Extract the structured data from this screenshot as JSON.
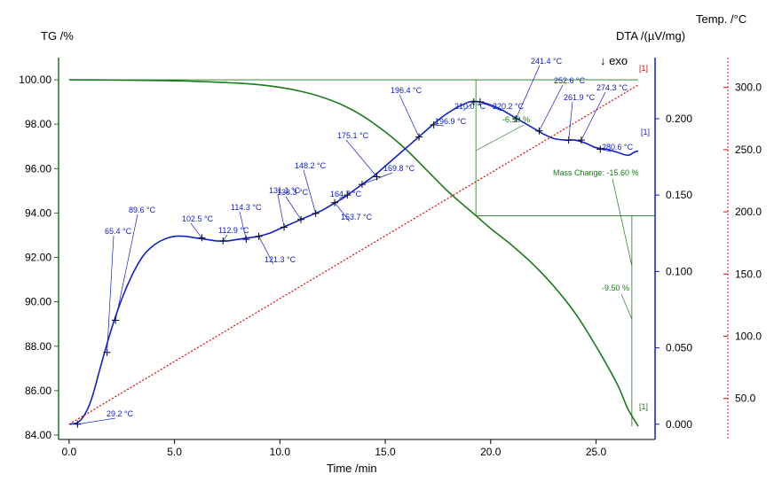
{
  "chart_data": {
    "type": "line",
    "x_label": "Time /min",
    "tg_label": "TG /%",
    "dta_label": "DTA /(µV/mg)",
    "temp_label": "Temp. /°C",
    "exo_label": "↓ exo",
    "xlim": [
      -0.5,
      27.8
    ],
    "tg_lim": [
      83.8,
      101
    ],
    "dta_lim": [
      -0.01,
      0.24
    ],
    "temp_lim": [
      17,
      324
    ],
    "x_ticks": [
      "0.0",
      "5.0",
      "10.0",
      "15.0",
      "20.0",
      "25.0"
    ],
    "tg_ticks": [
      "84.00",
      "86.00",
      "88.00",
      "90.00",
      "92.00",
      "94.00",
      "96.00",
      "98.00",
      "100.00"
    ],
    "dta_ticks": [
      "0.000",
      "0.050",
      "0.100",
      "0.150",
      "0.200"
    ],
    "temp_ticks": [
      "50.0",
      "100.0",
      "150.0",
      "200.0",
      "250.0",
      "300.0"
    ],
    "colors": {
      "tg": "#1a7a1a",
      "dta": "#1020c8",
      "temp": "#e00000",
      "grid": "#000000"
    },
    "series": [
      {
        "name": "TG",
        "axis": "tg",
        "x": [
          0,
          2,
          4,
          6,
          8,
          9,
          10,
          11,
          12,
          13,
          14,
          15,
          16,
          17,
          18,
          19.3,
          20,
          21,
          22,
          23,
          24,
          25,
          26,
          26.5,
          27
        ],
        "y": [
          100,
          99.99,
          99.97,
          99.93,
          99.85,
          99.78,
          99.66,
          99.48,
          99.22,
          98.85,
          98.33,
          97.65,
          96.85,
          95.9,
          94.95,
          93.88,
          93.3,
          92.55,
          91.7,
          90.7,
          89.5,
          88.0,
          86.3,
          85.2,
          84.4
        ]
      },
      {
        "name": "DTA",
        "axis": "dta",
        "x": [
          0,
          0.5,
          1.0,
          1.5,
          2.0,
          2.5,
          3.0,
          3.5,
          4.0,
          4.5,
          5.0,
          5.5,
          6.0,
          6.5,
          7.0,
          7.5,
          8.0,
          8.5,
          9.0,
          9.5,
          10.0,
          10.5,
          11.0,
          11.5,
          12.0,
          12.5,
          13.0,
          13.5,
          14.0,
          14.5,
          15.0,
          15.5,
          16.0,
          16.5,
          17.0,
          17.5,
          18.0,
          18.5,
          19.0,
          19.5,
          20.0,
          20.5,
          21.0,
          21.5,
          22.0,
          22.5,
          23.0,
          23.5,
          24.0,
          24.5,
          25.0,
          25.5,
          26.0,
          26.5,
          26.8,
          27.0
        ],
        "y": [
          0.0,
          0.002,
          0.014,
          0.038,
          0.062,
          0.082,
          0.098,
          0.11,
          0.117,
          0.121,
          0.123,
          0.123,
          0.122,
          0.121,
          0.12,
          0.12,
          0.121,
          0.122,
          0.123,
          0.125,
          0.128,
          0.131,
          0.134,
          0.137,
          0.14,
          0.144,
          0.148,
          0.153,
          0.158,
          0.163,
          0.169,
          0.175,
          0.181,
          0.187,
          0.193,
          0.199,
          0.204,
          0.208,
          0.211,
          0.211,
          0.209,
          0.206,
          0.202,
          0.198,
          0.194,
          0.19,
          0.187,
          0.186,
          0.186,
          0.184,
          0.181,
          0.18,
          0.178,
          0.176,
          0.178,
          0.179
        ]
      },
      {
        "name": "Temp",
        "axis": "temp",
        "x": [
          0,
          27
        ],
        "y": [
          29.2,
          302
        ]
      }
    ],
    "dta_peaks": [
      {
        "label": "29.2 °C",
        "x": 0.4,
        "y": 0.0
      },
      {
        "label": "65.4 °C",
        "x": 1.8,
        "y": 0.047
      },
      {
        "label": "89.6 °C",
        "x": 2.2,
        "y": 0.068
      },
      {
        "label": "102.5 °C",
        "x": 6.3,
        "y": 0.122
      },
      {
        "label": "112.9 °C",
        "x": 7.3,
        "y": 0.12
      },
      {
        "label": "114.3 °C",
        "x": 8.4,
        "y": 0.121
      },
      {
        "label": "121.3 °C",
        "x": 9.0,
        "y": 0.123
      },
      {
        "label": "131.1 °C",
        "x": 10.2,
        "y": 0.129
      },
      {
        "label": "138.3 °C",
        "x": 11.0,
        "y": 0.134
      },
      {
        "label": "148.2 °C",
        "x": 11.7,
        "y": 0.138
      },
      {
        "label": "153.7 °C",
        "x": 12.6,
        "y": 0.145
      },
      {
        "label": "164.7 °C",
        "x": 13.2,
        "y": 0.15
      },
      {
        "label": "169.8 °C",
        "x": 13.9,
        "y": 0.157
      },
      {
        "label": "175.1 °C",
        "x": 14.6,
        "y": 0.162
      },
      {
        "label": "196.4 °C",
        "x": 16.6,
        "y": 0.188
      },
      {
        "label": "196.9 °C",
        "x": 17.3,
        "y": 0.196
      },
      {
        "label": "210.0 °C",
        "x": 19.2,
        "y": 0.211
      },
      {
        "label": "220.2 °C",
        "x": 19.5,
        "y": 0.211
      },
      {
        "label": "241.4 °C",
        "x": 21.2,
        "y": 0.2
      },
      {
        "label": "252.6 °C",
        "x": 22.3,
        "y": 0.192
      },
      {
        "label": "261.9 °C",
        "x": 23.7,
        "y": 0.186
      },
      {
        "label": "274.3 °C",
        "x": 24.3,
        "y": 0.186
      },
      {
        "label": "280.6 °C",
        "x": 25.2,
        "y": 0.18
      }
    ],
    "mass_changes": [
      {
        "label": "-6.10 %"
      },
      {
        "label": "Mass Change: -15.60 %"
      },
      {
        "label": "-9.50 %"
      }
    ],
    "markers": [
      "[1]",
      "[1]",
      "[1]"
    ]
  }
}
